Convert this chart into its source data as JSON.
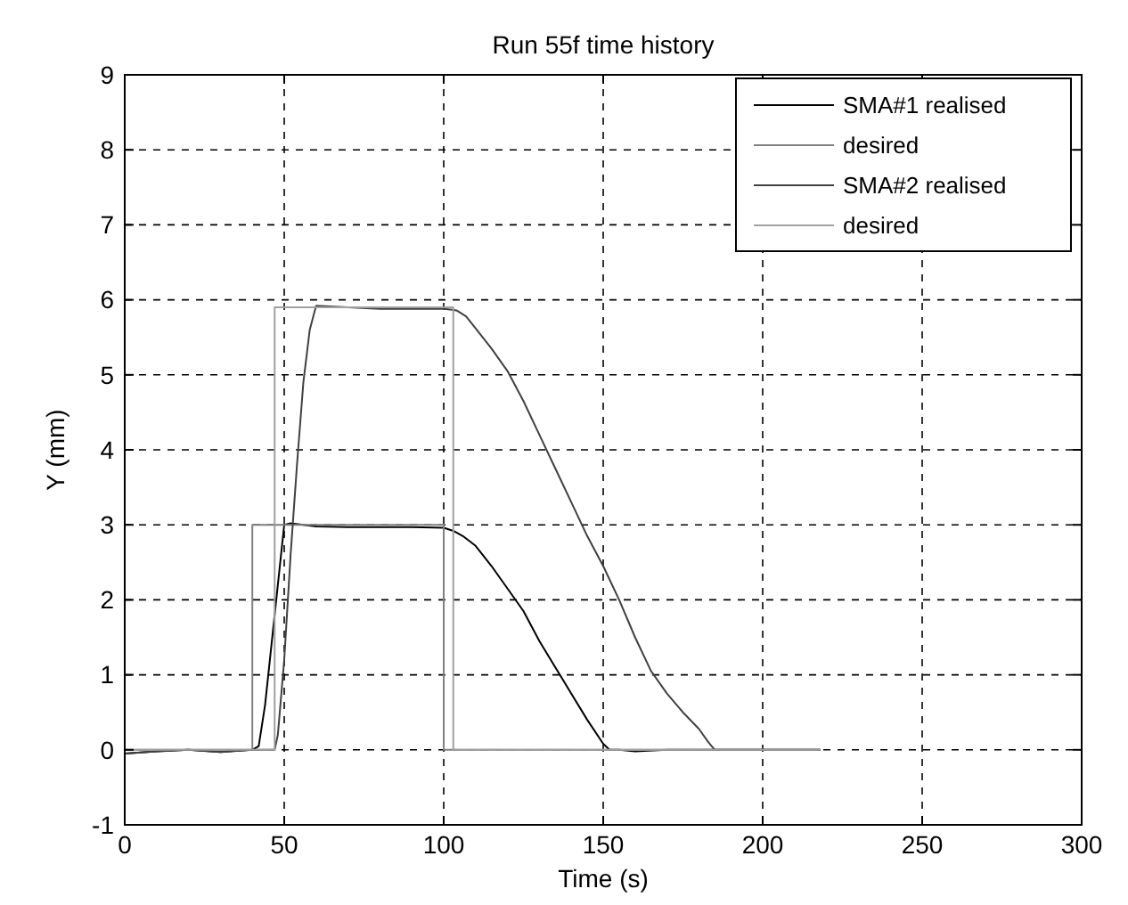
{
  "chart_data": {
    "type": "line",
    "title": "Run 55f time history",
    "xlabel": "Time (s)",
    "ylabel": "Y (mm)",
    "xlim": [
      0,
      300
    ],
    "ylim": [
      -1,
      9
    ],
    "xticks": [
      0,
      50,
      100,
      150,
      200,
      250,
      300
    ],
    "yticks": [
      -1,
      0,
      1,
      2,
      3,
      4,
      5,
      6,
      7,
      8,
      9
    ],
    "grid": true,
    "legend": "top right",
    "line_style": "solid",
    "series": [
      {
        "name": "SMA#1 realised",
        "color": "#000000",
        "x": [
          0,
          10,
          20,
          30,
          40,
          42,
          44,
          46,
          48,
          50,
          52,
          60,
          70,
          80,
          90,
          100,
          103,
          106,
          110,
          115,
          120,
          125,
          130,
          135,
          140,
          145,
          150,
          152,
          155,
          160,
          170,
          180,
          190,
          200,
          210,
          218
        ],
        "values": [
          -0.05,
          -0.02,
          0,
          -0.03,
          0,
          0.05,
          0.6,
          1.4,
          2.2,
          3.0,
          3.02,
          2.98,
          2.97,
          2.97,
          2.97,
          2.96,
          2.92,
          2.85,
          2.72,
          2.45,
          2.15,
          1.85,
          1.45,
          1.1,
          0.75,
          0.4,
          0.08,
          0,
          0,
          -0.02,
          0,
          0,
          0,
          0,
          0,
          0
        ]
      },
      {
        "name": "desired",
        "color": "#808080",
        "x": [
          0,
          40,
          40,
          100,
          100,
          218
        ],
        "values": [
          0,
          0,
          3,
          3,
          0,
          0
        ]
      },
      {
        "name": "SMA#2 realised",
        "color": "#404040",
        "x": [
          0,
          10,
          20,
          30,
          40,
          47,
          48,
          50,
          52,
          54,
          56,
          58,
          60,
          70,
          80,
          90,
          100,
          104,
          107,
          110,
          115,
          120,
          125,
          130,
          135,
          140,
          145,
          150,
          155,
          160,
          165,
          170,
          175,
          180,
          183,
          185,
          190,
          200,
          210,
          218
        ],
        "values": [
          -0.05,
          -0.02,
          0,
          -0.03,
          0,
          0,
          0.2,
          1.2,
          2.6,
          3.8,
          4.9,
          5.6,
          5.92,
          5.9,
          5.88,
          5.88,
          5.88,
          5.86,
          5.78,
          5.62,
          5.35,
          5.05,
          4.65,
          4.2,
          3.75,
          3.3,
          2.85,
          2.45,
          2.0,
          1.5,
          1.05,
          0.75,
          0.5,
          0.28,
          0.1,
          0,
          0,
          0,
          0,
          0
        ]
      },
      {
        "name": "desired",
        "color": "#a0a0a0",
        "x": [
          0,
          47,
          47,
          103,
          103,
          218
        ],
        "values": [
          0,
          0,
          5.9,
          5.9,
          0,
          0
        ]
      }
    ]
  }
}
